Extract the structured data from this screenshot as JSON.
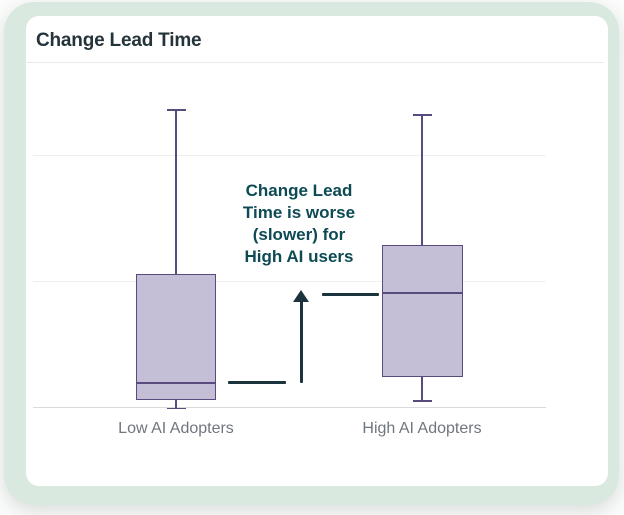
{
  "card": {
    "title": "Change Lead Time"
  },
  "chart_data": {
    "type": "boxplot",
    "title": "Change Lead Time",
    "orientation": "vertical",
    "categories": [
      "Low AI Adopters",
      "High AI Adopters"
    ],
    "series": [
      {
        "name": "Low AI Adopters",
        "whisker_low": -0.5,
        "q1": 2.1,
        "median": 7.4,
        "q3": 39.5,
        "whisker_high": 88.1
      },
      {
        "name": "High AI Adopters",
        "whisker_low": 1.8,
        "q1": 8.9,
        "median": 34.1,
        "q3": 48.1,
        "whisker_high": 86.6
      }
    ],
    "ylim": [
      0,
      100
    ],
    "units": "relative (y-axis has no tick labels in the image)",
    "grid": "horizontal gridlines, no axis tick labels",
    "legend": "none",
    "annotation": "Change Lead\nTime is worse\n(slower) for\nHigh AI users",
    "annotation_meaning": "step arrow from Low-adopter median up to High-adopter median"
  },
  "colors": {
    "frame": "#d9e9e0",
    "card": "#ffffff",
    "box_fill": "#c4bed6",
    "box_border": "#5a4b7f",
    "annotation_text": "#0d4a54",
    "annotation_line": "#1a333c",
    "title_text": "#25333a",
    "axis_label_text": "#6f767e"
  }
}
